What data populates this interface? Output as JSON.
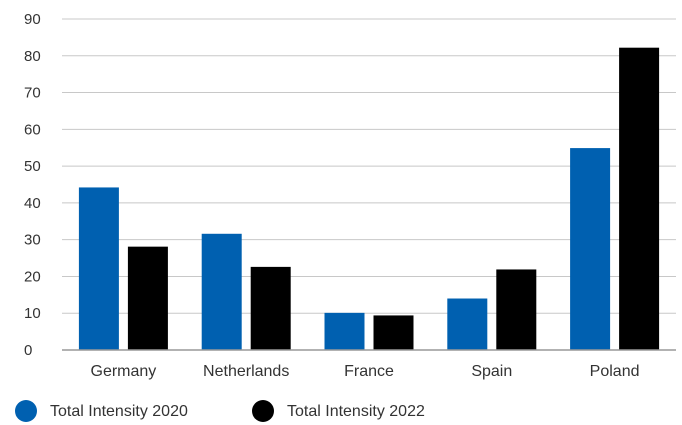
{
  "chart_data": {
    "type": "bar",
    "categories": [
      "Germany",
      "Netherlands",
      "France",
      "Spain",
      "Poland"
    ],
    "series": [
      {
        "name": "Total Intensity 2020",
        "color": "#0060b0",
        "values": [
          44.2,
          31.6,
          10.1,
          14.0,
          54.9
        ]
      },
      {
        "name": "Total Intensity 2022",
        "color": "#000000",
        "values": [
          28.1,
          22.6,
          9.4,
          21.9,
          82.2
        ]
      }
    ],
    "yticks": [
      "0",
      "10",
      "20",
      "30",
      "40",
      "50",
      "60",
      "70",
      "80",
      "90"
    ],
    "ylim": [
      0,
      90
    ],
    "grid": true,
    "legend_position": "bottom-left"
  }
}
